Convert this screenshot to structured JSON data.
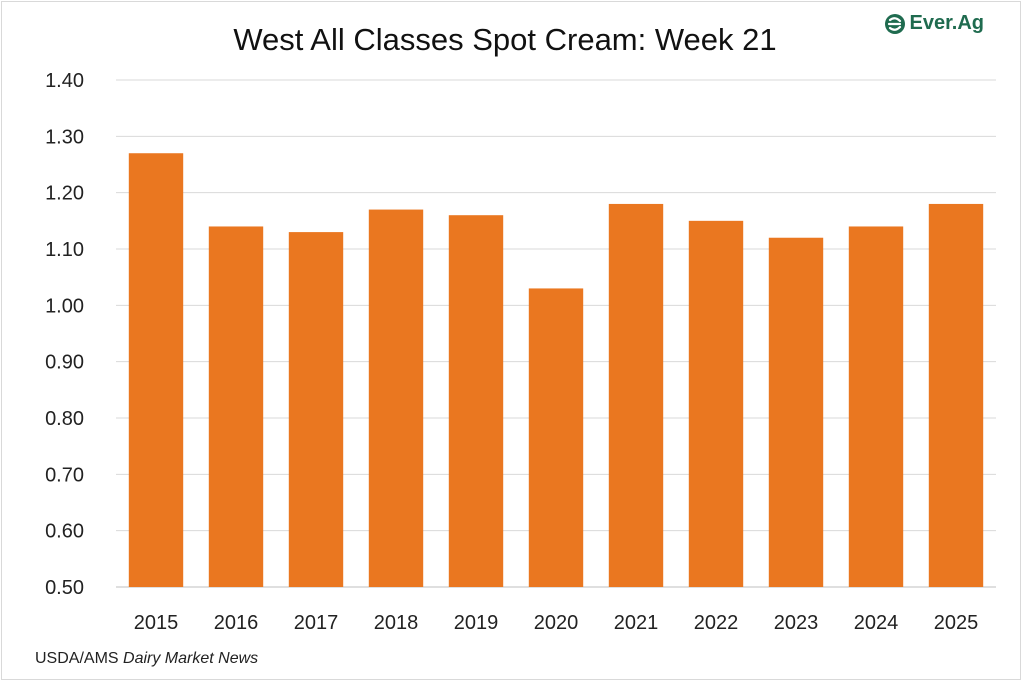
{
  "logo": {
    "text": "Ever.Ag",
    "icon": "leaf-e-icon",
    "color": "#1f6b4f"
  },
  "source": {
    "prefix": "USDA/AMS ",
    "italic": "Dairy Market News"
  },
  "chart_data": {
    "type": "bar",
    "title": "West All Classes Spot Cream: Week 21",
    "categories": [
      "2015",
      "2016",
      "2017",
      "2018",
      "2019",
      "2020",
      "2021",
      "2022",
      "2023",
      "2024",
      "2025"
    ],
    "values": [
      1.27,
      1.14,
      1.13,
      1.17,
      1.16,
      1.03,
      1.18,
      1.15,
      1.12,
      1.14,
      1.18
    ],
    "ylim": [
      0.5,
      1.4
    ],
    "yticks": [
      "0.50",
      "0.60",
      "0.70",
      "0.80",
      "0.90",
      "1.00",
      "1.10",
      "1.20",
      "1.30",
      "1.40"
    ],
    "xlabel": "",
    "ylabel": "",
    "grid": true,
    "bar_color": "#ea7720"
  }
}
